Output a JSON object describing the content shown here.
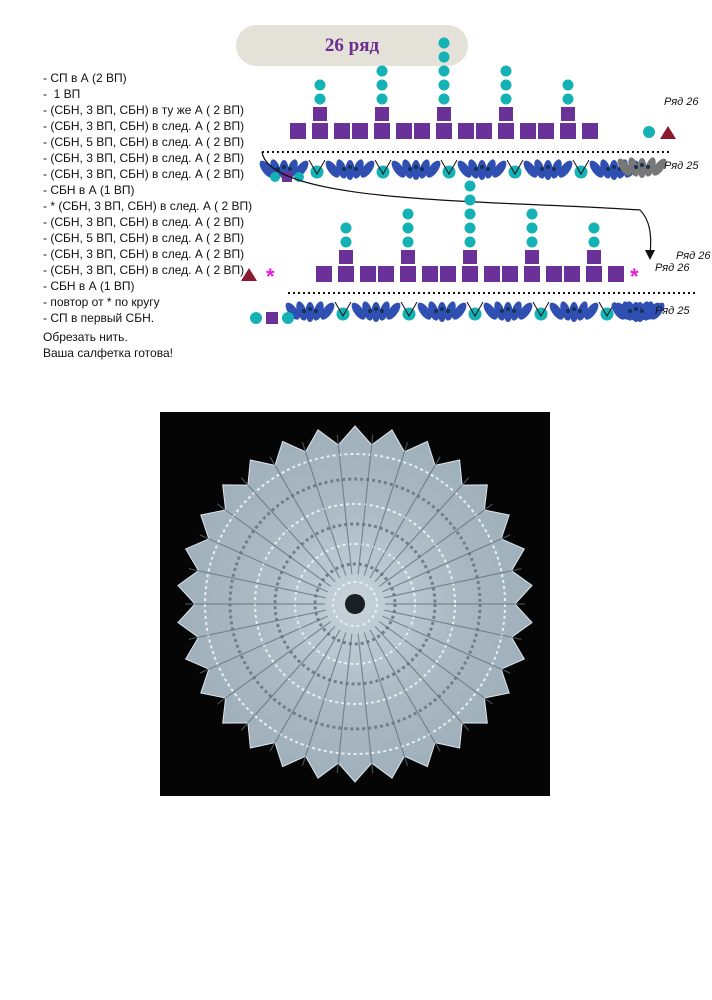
{
  "title": "26 ряд",
  "steps": [
    "- СП в А (2 ВП)",
    "-  1 ВП",
    "- (СБН, 3 ВП, СБН) в ту же А ( 2 ВП)",
    "- (СБН, 3 ВП, СБН) в след. А ( 2 ВП)",
    "- (СБН, 5 ВП, СБН) в след. А ( 2 ВП)",
    "- (СБН, 3 ВП, СБН) в след. А ( 2 ВП)",
    "- (СБН, 3 ВП, СБН) в след. А ( 2 ВП)",
    "- СБН в А (1 ВП)",
    "- * (СБН, 3 ВП, СБН) в след. А ( 2 ВП)",
    "- (СБН, 3 ВП, СБН) в след. А ( 2 ВП)",
    "- (СБН, 5 ВП, СБН) в след. А ( 2 ВП)",
    "- (СБН, 3 ВП, СБН) в след. А ( 2 ВП)",
    "- (СБН, 3 ВП, СБН) в след. А ( 2 ВП)",
    "- СБН в А (1 ВП)",
    "- повтор от * по кругу",
    "- СП в первый СБН."
  ],
  "finish": [
    "Обрезать нить.",
    "Ваша салфетка готова!"
  ],
  "diagram": {
    "row26": "Ряд 26",
    "row25": "Ряд 25",
    "colors": {
      "chain": "#15b2b5",
      "sc": "#6a3199",
      "slip": "#8b1a2e",
      "shell": "#2f4fb3",
      "shell_dark": "#777777",
      "repeat": "#e81bd8"
    }
  }
}
